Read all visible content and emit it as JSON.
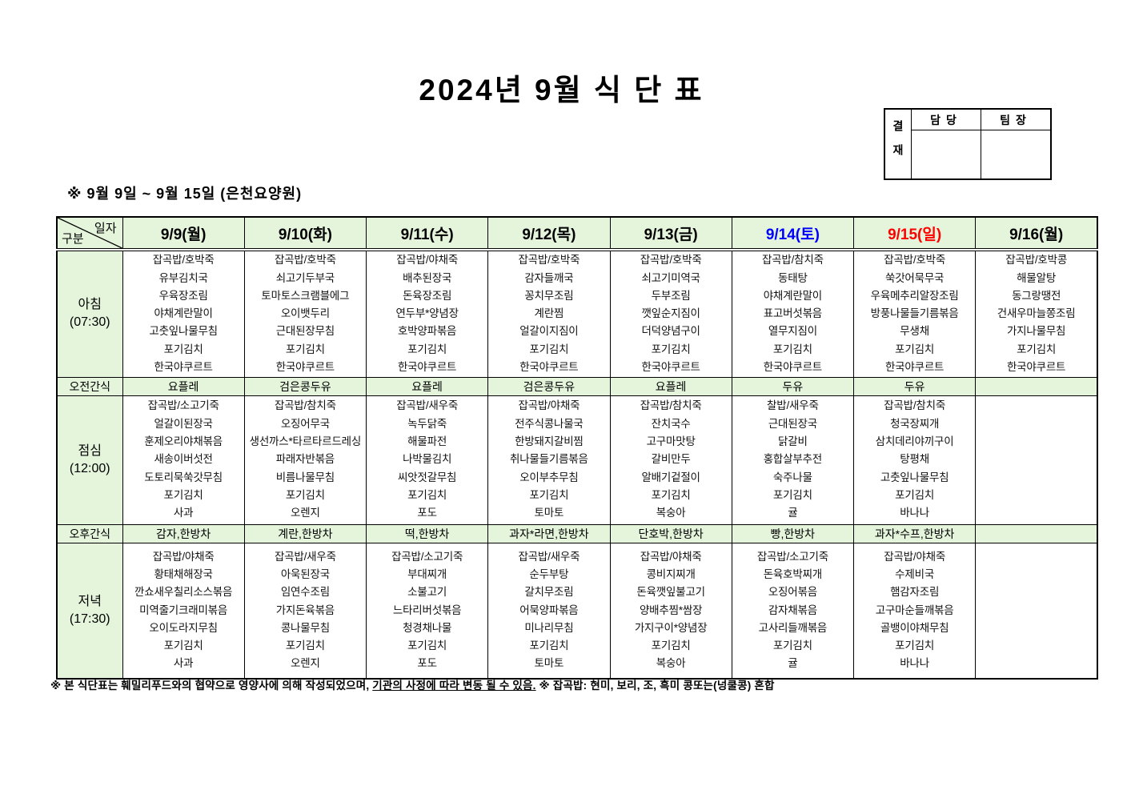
{
  "title": "2024년 9월 식 단 표",
  "approval": {
    "stamp_label": "결재",
    "columns": [
      "담당",
      "팀장"
    ]
  },
  "subtitle": "※  9월 9일 ~ 9월 15일 (은천요양원)",
  "table": {
    "corner": {
      "date_word": "일자",
      "category_word": "구분"
    },
    "dates": [
      {
        "label": "9/9(월)",
        "color": "#000000"
      },
      {
        "label": "9/10(화)",
        "color": "#000000"
      },
      {
        "label": "9/11(수)",
        "color": "#000000"
      },
      {
        "label": "9/12(목)",
        "color": "#000000"
      },
      {
        "label": "9/13(금)",
        "color": "#000000"
      },
      {
        "label": "9/14(토)",
        "color": "#0000ff"
      },
      {
        "label": "9/15(일)",
        "color": "#ff0000"
      },
      {
        "label": "9/16(월)",
        "color": "#000000"
      }
    ],
    "rows": [
      {
        "id": "breakfast",
        "type": "meal",
        "label": [
          "아침",
          "(07:30)"
        ],
        "cells": [
          [
            "잡곡밥/호박죽",
            "유부김치국",
            "우육장조림",
            "야채계란말이",
            "고춧잎나물무침",
            "포기김치",
            "한국야쿠르트"
          ],
          [
            "잡곡밥/호박죽",
            "쇠고기두부국",
            "토마토스크램블에그",
            "오이뱃두리",
            "근대된장무침",
            "포기김치",
            "한국야쿠르트"
          ],
          [
            "잡곡밥/야채죽",
            "배추된장국",
            "돈육장조림",
            "연두부*양념장",
            "호박양파볶음",
            "포기김치",
            "한국야쿠르트"
          ],
          [
            "잡곡밥/호박죽",
            "감자들깨국",
            "꽁치무조림",
            "계란찜",
            "얼갈이지짐이",
            "포기김치",
            "한국야쿠르트"
          ],
          [
            "잡곡밥/호박죽",
            "쇠고기미역국",
            "두부조림",
            "깻잎순지짐이",
            "더덕양념구이",
            "포기김치",
            "한국야쿠르트"
          ],
          [
            "잡곡밥/참치죽",
            "동태탕",
            "야채계란말이",
            "표고버섯볶음",
            "열무지짐이",
            "포기김치",
            "한국야쿠르트"
          ],
          [
            "잡곡밥/호박죽",
            "쑥갓어묵무국",
            "우육메추리알장조림",
            "방풍나물들기름볶음",
            "무생채",
            "포기김치",
            "한국야쿠르트"
          ],
          [
            "잡곡밥/호박콩",
            "해물알탕",
            "동그랑땡전",
            "건새우마늘쫑조림",
            "가지나물무침",
            "포기김치",
            "한국야쿠르트"
          ]
        ]
      },
      {
        "id": "am-snack",
        "type": "snack",
        "label": [
          "오전간식"
        ],
        "cells": [
          "요플레",
          "검은콩두유",
          "요플레",
          "검은콩두유",
          "요플레",
          "두유",
          "두유",
          ""
        ]
      },
      {
        "id": "lunch",
        "type": "meal",
        "label": [
          "점심",
          "(12:00)"
        ],
        "cells": [
          [
            "잡곡밥/소고기죽",
            "얼갈이된장국",
            "훈제오리야채볶음",
            "새송이버섯전",
            "도토리묵쑥갓무침",
            "포기김치",
            "사과"
          ],
          [
            "잡곡밥/참치죽",
            "오징어무국",
            "생선까스*타르타르드레싱",
            "파래자반볶음",
            "비름나물무침",
            "포기김치",
            "오렌지"
          ],
          [
            "잡곡밥/새우죽",
            "녹두닭죽",
            "해물파전",
            "나박물김치",
            "씨앗젓갈무침",
            "포기김치",
            "포도"
          ],
          [
            "잡곡밥/야채죽",
            "전주식콩나물국",
            "한방돼지갈비찜",
            "취나물들기름볶음",
            "오이부추무침",
            "포기김치",
            "토마토"
          ],
          [
            "잡곡밥/참치죽",
            "잔치국수",
            "고구마맛탕",
            "갈비만두",
            "알배기겉절이",
            "포기김치",
            "복숭아"
          ],
          [
            "찰밥/새우죽",
            "근대된장국",
            "닭갈비",
            "홍합살부추전",
            "숙주나물",
            "포기김치",
            "귤"
          ],
          [
            "잡곡밥/참치죽",
            "청국장찌개",
            "삼치데리야끼구이",
            "탕평채",
            "고춧잎나물무침",
            "포기김치",
            "바나나"
          ],
          []
        ]
      },
      {
        "id": "pm-snack",
        "type": "snack",
        "label": [
          "오후간식"
        ],
        "cells": [
          "감자,한방차",
          "계란,한방차",
          "떡,한방차",
          "과자*라면,한방차",
          "단호박,한방차",
          "빵,한방차",
          "과자*수프,한방차",
          ""
        ]
      },
      {
        "id": "dinner",
        "type": "meal",
        "label": [
          "저녁",
          "(17:30)"
        ],
        "cells": [
          [
            "잡곡밥/야채죽",
            "황태채해장국",
            "깐쇼새우칠리소스볶음",
            "미역줄기크래미볶음",
            "오이도라지무침",
            "포기김치",
            "사과"
          ],
          [
            "잡곡밥/새우죽",
            "아욱된장국",
            "임연수조림",
            "가지돈육볶음",
            "콩나물무침",
            "포기김치",
            "오렌지"
          ],
          [
            "잡곡밥/소고기죽",
            "부대찌개",
            "소불고기",
            "느타리버섯볶음",
            "청경채나물",
            "포기김치",
            "포도"
          ],
          [
            "잡곡밥/새우죽",
            "순두부탕",
            "갈치무조림",
            "어묵양파볶음",
            "미나리무침",
            "포기김치",
            "토마토"
          ],
          [
            "잡곡밥/야채죽",
            "콩비지찌개",
            "돈육깻잎불고기",
            "양배추찜*쌈장",
            "가지구이*양념장",
            "포기김치",
            "복숭아"
          ],
          [
            "잡곡밥/소고기죽",
            "돈육호박찌개",
            "오징어볶음",
            "감자채볶음",
            "고사리들깨볶음",
            "포기김치",
            "귤"
          ],
          [
            "잡곡밥/야채죽",
            "수제비국",
            "햄감자조림",
            "고구마순들깨볶음",
            "골뱅이야채무침",
            "포기김치",
            "바나나"
          ],
          []
        ]
      }
    ]
  },
  "footer": {
    "prefix": "※  본 식단표는 훼밀리푸드와의 협약으로 영양사에 의해 작성되었으며, ",
    "underlined": "기관의 사정에 따라 변동 될 수 있음.",
    "suffix": " ※ 잡곡밥: 현미, 보리, 조, 흑미 콩또는(넝쿨콩) 혼합"
  },
  "colors": {
    "cell_green": "#e4f5dc",
    "saturday_blue": "#0000ff",
    "sunday_red": "#ff0000"
  }
}
